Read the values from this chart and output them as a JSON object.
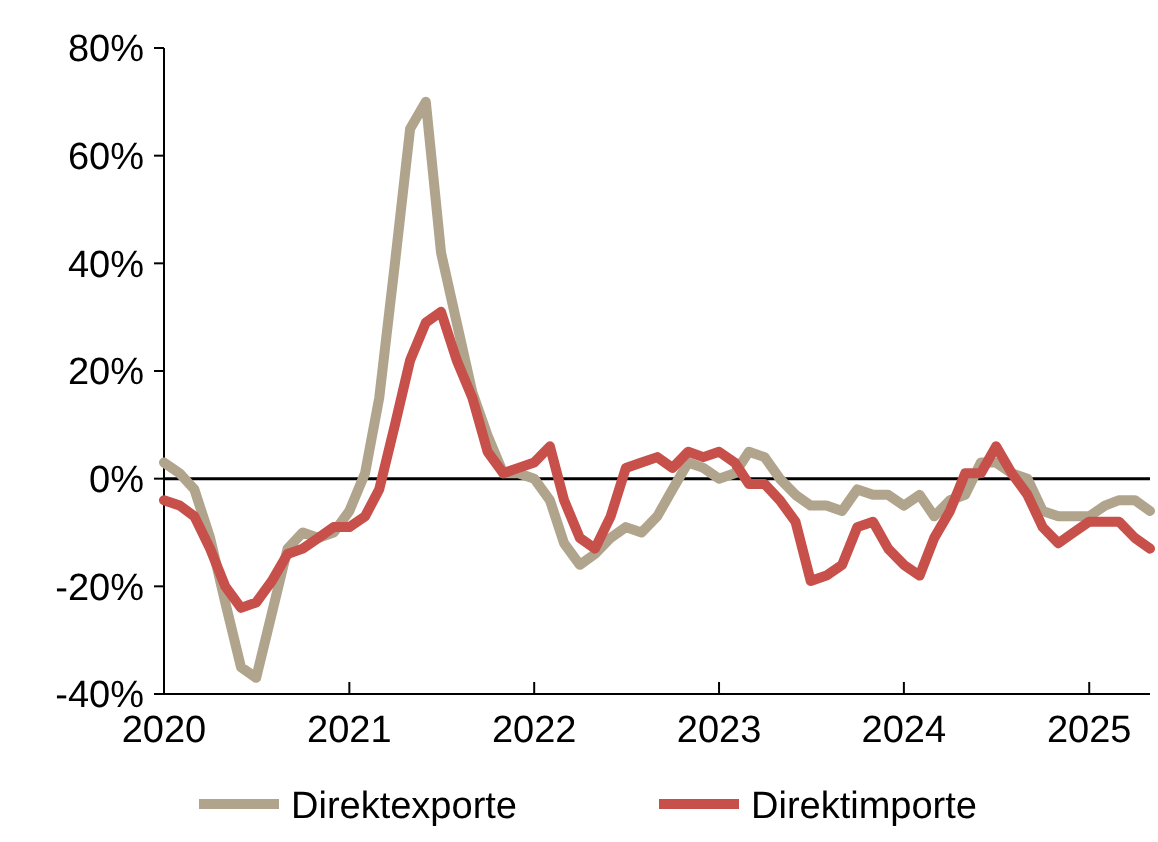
{
  "chart_data": {
    "type": "line",
    "x": [
      "2020-01",
      "2020-02",
      "2020-03",
      "2020-04",
      "2020-05",
      "2020-06",
      "2020-07",
      "2020-08",
      "2020-09",
      "2020-10",
      "2020-11",
      "2020-12",
      "2021-01",
      "2021-02",
      "2021-03",
      "2021-04",
      "2021-05",
      "2021-06",
      "2021-07",
      "2021-08",
      "2021-09",
      "2021-10",
      "2021-11",
      "2021-12",
      "2022-01",
      "2022-02",
      "2022-03",
      "2022-04",
      "2022-05",
      "2022-06",
      "2022-07",
      "2022-08",
      "2022-09",
      "2022-10",
      "2022-11",
      "2022-12",
      "2023-01",
      "2023-02",
      "2023-03",
      "2023-04",
      "2023-05",
      "2023-06",
      "2023-07",
      "2023-08",
      "2023-09",
      "2023-10",
      "2023-11",
      "2023-12",
      "2024-01",
      "2024-02",
      "2024-03",
      "2024-04",
      "2024-05",
      "2024-06",
      "2024-07",
      "2024-08",
      "2024-09",
      "2024-10",
      "2024-11",
      "2024-12",
      "2025-01",
      "2025-02",
      "2025-03",
      "2025-04",
      "2025-05"
    ],
    "series": [
      {
        "name": "Direktexporte",
        "color": "#b0a48c",
        "values": [
          3,
          1,
          -2,
          -11,
          -23,
          -35,
          -37,
          -25,
          -13,
          -10,
          -11,
          -10,
          -6,
          1,
          15,
          40,
          65,
          70,
          42,
          29,
          16,
          8,
          1,
          1,
          0,
          -4,
          -12,
          -16,
          -14,
          -11,
          -9,
          -10,
          -7,
          -2,
          3,
          2,
          0,
          1,
          5,
          4,
          0,
          -3,
          -5,
          -5,
          -6,
          -2,
          -3,
          -3,
          -5,
          -3,
          -7,
          -4,
          -3,
          3,
          3,
          1,
          0,
          -6,
          -7,
          -7,
          -7,
          -5,
          -4,
          -4,
          -6
        ]
      },
      {
        "name": "Direktimporte",
        "color": "#c8504b",
        "values": [
          -4,
          -5,
          -7,
          -13,
          -20,
          -24,
          -23,
          -19,
          -14,
          -13,
          -11,
          -9,
          -9,
          -7,
          -2,
          10,
          22,
          29,
          31,
          22,
          15,
          5,
          1,
          2,
          3,
          6,
          -4,
          -11,
          -13,
          -7,
          2,
          3,
          4,
          2,
          5,
          4,
          5,
          3,
          -1,
          -1,
          -4,
          -8,
          -19,
          -18,
          -16,
          -9,
          -8,
          -13,
          -16,
          -18,
          -11,
          -6,
          1,
          1,
          6,
          1,
          -3,
          -9,
          -12,
          -10,
          -8,
          -8,
          -8,
          -11,
          -13
        ]
      }
    ],
    "xlim": [
      "2020-01",
      "2025-05"
    ],
    "xticks": [
      "2020",
      "2021",
      "2022",
      "2023",
      "2024",
      "2025"
    ],
    "ylim": [
      -40,
      80
    ],
    "yticks": [
      {
        "value": -40,
        "label": "-40%"
      },
      {
        "value": -20,
        "label": "-20%"
      },
      {
        "value": 0,
        "label": "0%"
      },
      {
        "value": 20,
        "label": "20%"
      },
      {
        "value": 40,
        "label": "40%"
      },
      {
        "value": 60,
        "label": "60%"
      },
      {
        "value": 80,
        "label": "80%"
      }
    ],
    "ref_lines": [
      {
        "axis": "y",
        "value": 0,
        "color": "#000000"
      }
    ],
    "grid": false,
    "legend": "bottom",
    "line_style": "solid",
    "marker": "none"
  }
}
